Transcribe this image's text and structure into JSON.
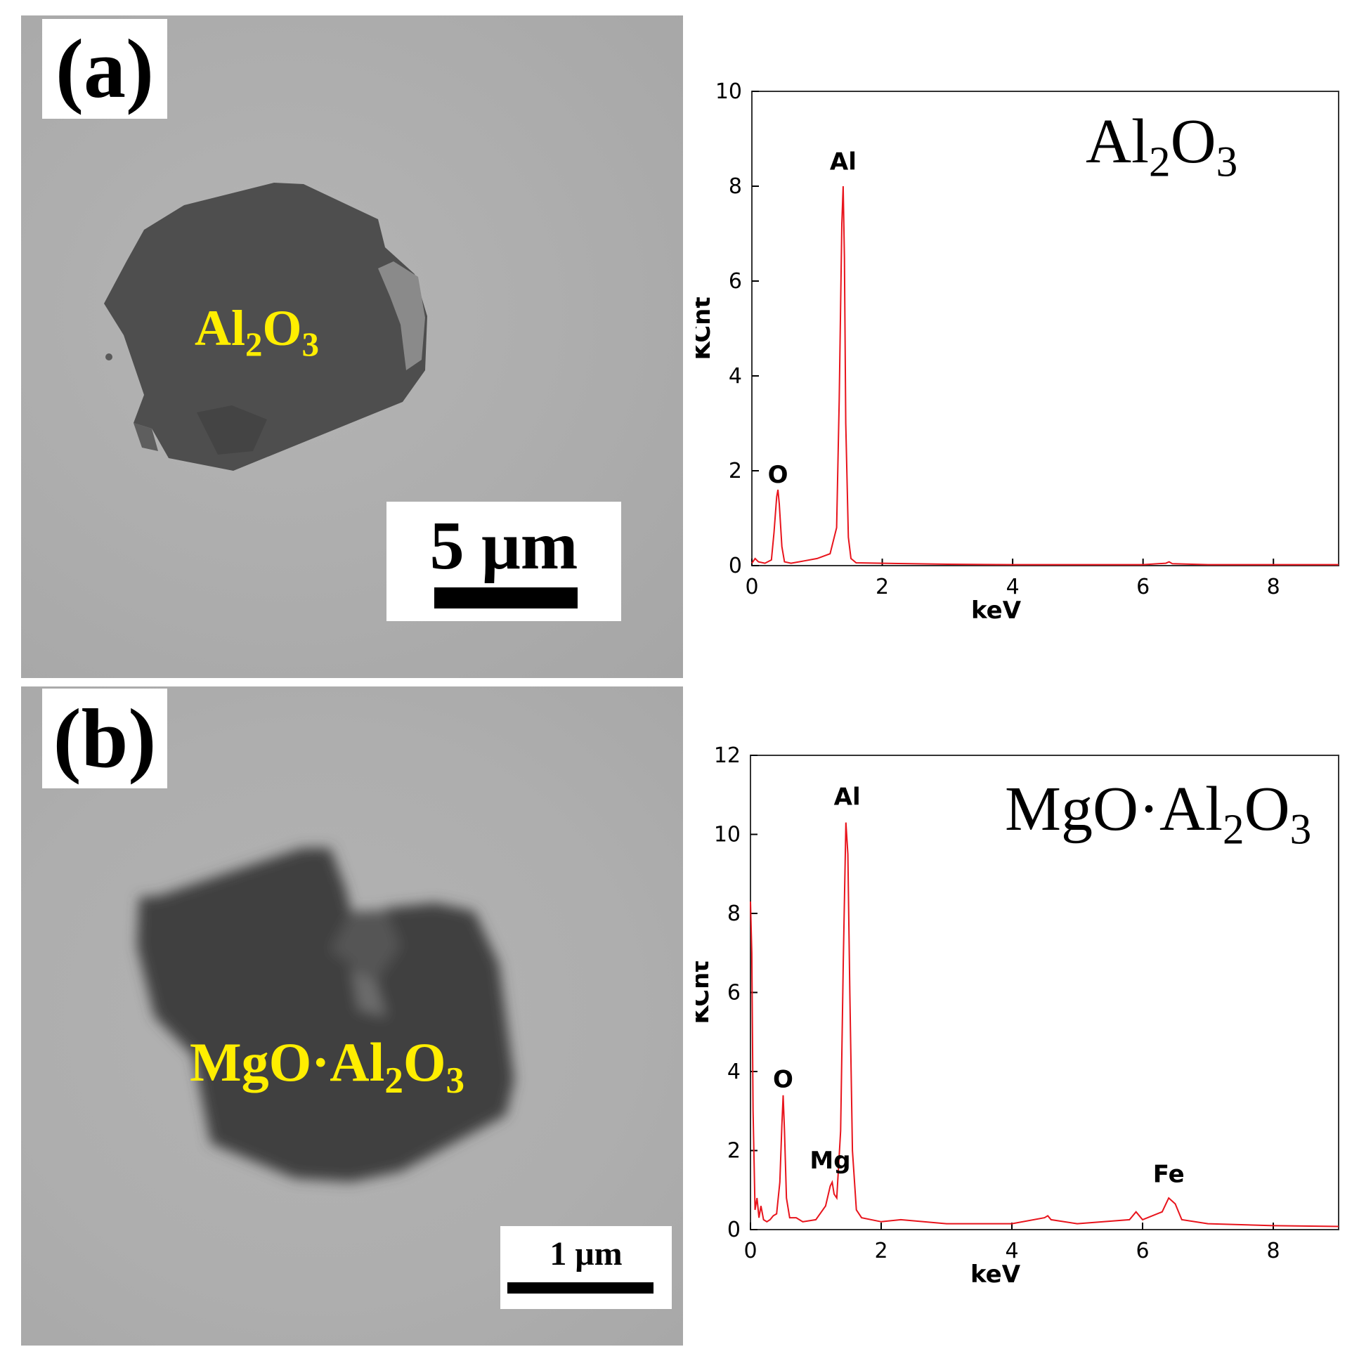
{
  "panels": [
    {
      "id": "a",
      "label": "(a)",
      "sem": {
        "phase_label_main": "Al",
        "phase_label_sub1": "2",
        "phase_label_mid": "O",
        "phase_label_sub2": "3",
        "scale_bar_text": "5 μm"
      },
      "eds": {
        "formula_main": "Al",
        "formula_sub1": "2",
        "formula_mid": "O",
        "formula_sub2": "3"
      }
    },
    {
      "id": "b",
      "label": "(b)",
      "sem": {
        "phase_label_main": "MgO·Al",
        "phase_label_sub1": "2",
        "phase_label_mid": "O",
        "phase_label_sub2": "3",
        "scale_bar_text": "1 μm"
      },
      "eds": {
        "formula_main": "MgO·Al",
        "formula_sub1": "2",
        "formula_mid": "O",
        "formula_sub2": "3"
      }
    }
  ],
  "colors": {
    "phase_label": "#ffee00",
    "spectrum_line": "#e8141c",
    "axis": "#000000"
  },
  "chart_data": [
    {
      "type": "line",
      "title": "",
      "xlabel": "keV",
      "ylabel": "KCnt",
      "xlim": [
        0,
        9
      ],
      "ylim": [
        0,
        10
      ],
      "xticks": [
        0,
        2,
        4,
        6,
        8
      ],
      "yticks": [
        0,
        2,
        4,
        6,
        8,
        10
      ],
      "grid": false,
      "series": [
        {
          "x": [
            0.0,
            0.05,
            0.1,
            0.2,
            0.3,
            0.34,
            0.38,
            0.4,
            0.42,
            0.46,
            0.5,
            0.6,
            0.8,
            1.0,
            1.2,
            1.3,
            1.34,
            1.38,
            1.4,
            1.42,
            1.44,
            1.48,
            1.52,
            1.6,
            2.0,
            3.0,
            4.0,
            5.0,
            6.0,
            6.35,
            6.4,
            6.45,
            7.0,
            8.0,
            9.0
          ],
          "y": [
            0.05,
            0.15,
            0.08,
            0.05,
            0.12,
            0.7,
            1.45,
            1.6,
            1.3,
            0.4,
            0.08,
            0.05,
            0.1,
            0.15,
            0.25,
            0.8,
            3.5,
            7.2,
            8.0,
            6.5,
            3.0,
            0.6,
            0.15,
            0.06,
            0.05,
            0.03,
            0.02,
            0.02,
            0.02,
            0.05,
            0.08,
            0.04,
            0.02,
            0.02,
            0.02
          ]
        }
      ],
      "annotations": [
        {
          "text": "O",
          "x": 0.4,
          "y": 1.75
        },
        {
          "text": "Al",
          "x": 1.4,
          "y": 8.35
        }
      ]
    },
    {
      "type": "line",
      "title": "",
      "xlabel": "keV",
      "ylabel": "KCnt",
      "xlim": [
        0,
        9
      ],
      "ylim": [
        0,
        12
      ],
      "xticks": [
        0,
        2,
        4,
        6,
        8
      ],
      "yticks": [
        0,
        2,
        4,
        6,
        8,
        10,
        12
      ],
      "grid": false,
      "series": [
        {
          "x": [
            0.0,
            0.02,
            0.04,
            0.07,
            0.1,
            0.13,
            0.16,
            0.2,
            0.25,
            0.3,
            0.35,
            0.4,
            0.45,
            0.48,
            0.5,
            0.52,
            0.55,
            0.6,
            0.7,
            0.8,
            1.0,
            1.15,
            1.22,
            1.25,
            1.28,
            1.32,
            1.38,
            1.42,
            1.46,
            1.49,
            1.52,
            1.56,
            1.62,
            1.7,
            2.0,
            2.3,
            3.0,
            4.0,
            4.5,
            4.55,
            4.6,
            5.0,
            5.8,
            5.9,
            6.0,
            6.3,
            6.4,
            6.5,
            6.6,
            7.0,
            8.0,
            9.0
          ],
          "y": [
            8.3,
            7.0,
            3.0,
            0.5,
            0.8,
            0.3,
            0.6,
            0.25,
            0.2,
            0.25,
            0.35,
            0.4,
            1.2,
            2.6,
            3.4,
            2.5,
            0.8,
            0.3,
            0.3,
            0.2,
            0.25,
            0.6,
            1.1,
            1.2,
            0.9,
            0.8,
            2.5,
            6.8,
            10.3,
            9.5,
            6.0,
            2.0,
            0.5,
            0.3,
            0.2,
            0.25,
            0.15,
            0.15,
            0.3,
            0.35,
            0.25,
            0.15,
            0.25,
            0.45,
            0.25,
            0.45,
            0.8,
            0.65,
            0.25,
            0.15,
            0.1,
            0.08
          ]
        }
      ],
      "annotations": [
        {
          "text": "O",
          "x": 0.5,
          "y": 3.6
        },
        {
          "text": "Mg",
          "x": 1.22,
          "y": 1.55
        },
        {
          "text": "Al",
          "x": 1.48,
          "y": 10.75
        },
        {
          "text": "Fe",
          "x": 6.4,
          "y": 1.2
        }
      ]
    }
  ]
}
